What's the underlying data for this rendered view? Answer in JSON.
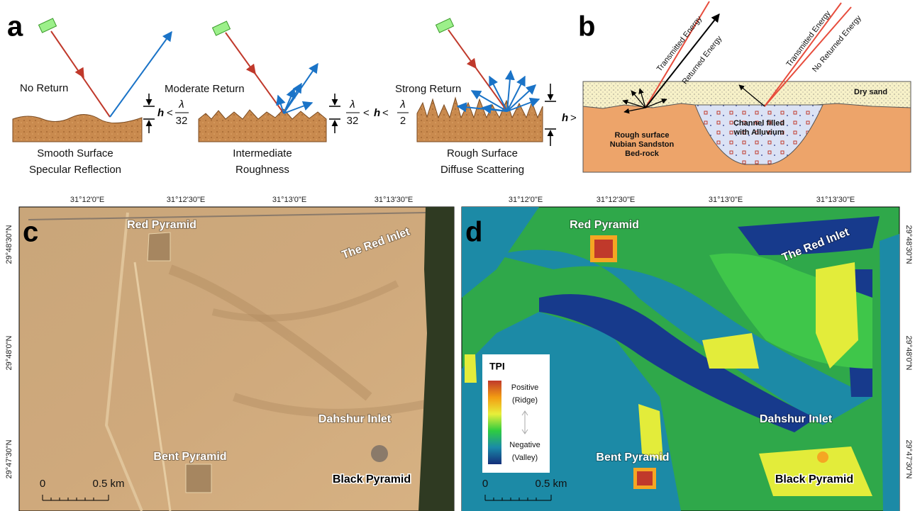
{
  "panel_a": {
    "label": "a",
    "cases": [
      {
        "return": "No Return",
        "surface": [
          "Smooth Surface",
          "Specular Reflection"
        ]
      },
      {
        "return": "Moderate  Return",
        "surface": [
          "Intermediate",
          "Roughness"
        ]
      },
      {
        "return": "Strong Return",
        "surface": [
          "Rough Surface",
          "Diffuse Scattering"
        ]
      }
    ],
    "condition_1": {
      "h": "h",
      "op": "<",
      "num": "λ",
      "den": "32"
    },
    "condition_2": {
      "num_1": "λ",
      "den_1": "32",
      "op_1": "<",
      "h": "h",
      "op_2": "<",
      "num_2": "λ",
      "den_2": "2"
    },
    "condition_3": {
      "h": "h",
      "op": ">"
    }
  },
  "panel_b": {
    "label": "b",
    "rays": [
      "Transmitted Energy",
      "Returned Energy",
      "Transmitted Energy",
      "No Returned Energy"
    ],
    "layers": {
      "top": "Dry sand",
      "channel": [
        "Channel filled",
        "with Alluvium"
      ],
      "bedrock": [
        "Rough surface",
        "Nubian Sandston",
        "Bed-rock"
      ]
    }
  },
  "maps": {
    "xticks": [
      "31°12'0\"E",
      "31°12'30\"E",
      "31°13'0\"E",
      "31°13'30\"E"
    ],
    "yticks": [
      "29°48'30\"N",
      "29°48'0\"N",
      "29°47'30\"N"
    ],
    "places": [
      "Red Pyramid",
      "The Red Inlet",
      "Dahshur Inlet",
      "Bent Pyramid",
      "Black Pyramid"
    ],
    "scale": [
      "0",
      "0.5 km"
    ],
    "panel_c": {
      "label": "c"
    },
    "panel_d": {
      "label": "d",
      "legend": {
        "title": "TPI",
        "high": [
          "Positive",
          "(Ridge)"
        ],
        "low": [
          "Negative",
          "(Valley)"
        ]
      }
    }
  }
}
